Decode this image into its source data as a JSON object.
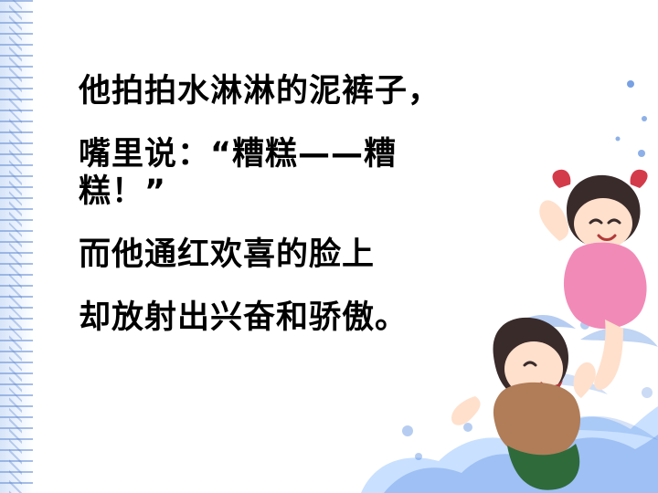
{
  "slide": {
    "lines": [
      "他拍拍水淋淋的泥裤子，",
      "嘴里说：“糟糕——糟",
      "糕！”",
      "而他通红欢喜的脸上",
      "却放射出兴奋和骄傲。"
    ],
    "colors": {
      "text": "#000000",
      "splash_blue": "#2f6fd6",
      "splash_light": "#9cc7ff",
      "girl_dress": "#f28ab8",
      "boy_shirt": "#b07d58",
      "boy_shorts": "#2f6a3b",
      "ribbon": "#d43b4a"
    },
    "illustration": {
      "subject": "two children splashing water",
      "icons": [
        "water-splash-icon",
        "girl-figure-icon",
        "boy-figure-icon"
      ]
    }
  }
}
